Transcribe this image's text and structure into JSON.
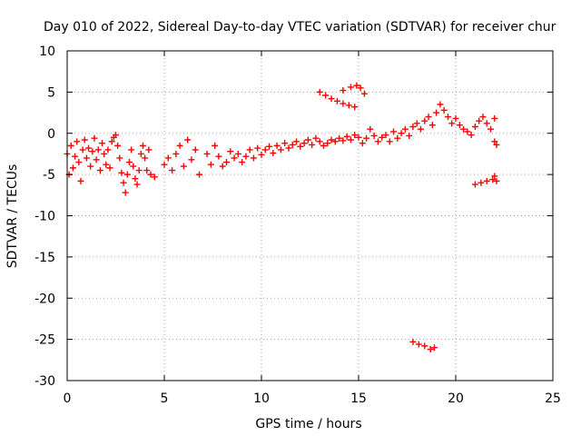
{
  "chart_data": {
    "type": "scatter",
    "title": "Day 010 of 2022, Sidereal Day-to-day VTEC variation (SDTVAR) for receiver chur",
    "xlabel": "GPS time / hours",
    "ylabel": "SDTVAR / TECUs",
    "xlim": [
      0,
      25
    ],
    "ylim": [
      -30,
      10
    ],
    "x_ticks": [
      0,
      5,
      10,
      15,
      20,
      25
    ],
    "x_tick_labels": [
      "0",
      "5",
      "10",
      "15",
      "20",
      "25"
    ],
    "y_ticks": [
      10,
      5,
      0,
      -5,
      -10,
      -15,
      -20,
      -25,
      -30
    ],
    "y_tick_labels": [
      "10",
      "5",
      "0",
      "-5",
      "-10",
      "-15",
      "-20",
      "-25",
      "-30"
    ],
    "grid": true,
    "marker": "+",
    "colors": {
      "series": "#ff0000",
      "grid": "#a0a0a0",
      "axis": "#000000"
    },
    "series": [
      {
        "name": "SDTVAR",
        "points": [
          [
            0.0,
            -2.5
          ],
          [
            0.1,
            -5.0
          ],
          [
            0.2,
            -1.5
          ],
          [
            0.3,
            -4.2
          ],
          [
            0.4,
            -2.8
          ],
          [
            0.5,
            -1.0
          ],
          [
            0.6,
            -3.5
          ],
          [
            0.7,
            -5.8
          ],
          [
            0.8,
            -2.0
          ],
          [
            0.9,
            -0.8
          ],
          [
            1.0,
            -3.0
          ],
          [
            1.1,
            -1.8
          ],
          [
            1.2,
            -4.0
          ],
          [
            1.3,
            -2.2
          ],
          [
            1.4,
            -0.6
          ],
          [
            1.5,
            -3.2
          ],
          [
            1.6,
            -2.0
          ],
          [
            1.7,
            -4.5
          ],
          [
            1.8,
            -1.2
          ],
          [
            1.9,
            -2.5
          ],
          [
            2.0,
            -3.8
          ],
          [
            2.1,
            -2.0
          ],
          [
            2.2,
            -4.2
          ],
          [
            2.3,
            -1.0
          ],
          [
            2.4,
            -0.5
          ],
          [
            2.5,
            -0.2
          ],
          [
            2.6,
            -1.5
          ],
          [
            2.7,
            -3.0
          ],
          [
            2.8,
            -4.8
          ],
          [
            2.9,
            -6.0
          ],
          [
            3.0,
            -7.2
          ],
          [
            3.1,
            -5.0
          ],
          [
            3.2,
            -3.5
          ],
          [
            3.3,
            -2.0
          ],
          [
            3.4,
            -4.0
          ],
          [
            3.5,
            -5.5
          ],
          [
            3.6,
            -6.2
          ],
          [
            3.7,
            -4.5
          ],
          [
            3.8,
            -2.5
          ],
          [
            3.9,
            -1.5
          ],
          [
            4.0,
            -3.0
          ],
          [
            4.1,
            -4.5
          ],
          [
            4.2,
            -2.0
          ],
          [
            4.3,
            -5.0
          ],
          [
            4.5,
            -5.3
          ],
          [
            5.0,
            -3.8
          ],
          [
            5.2,
            -3.0
          ],
          [
            5.4,
            -4.5
          ],
          [
            5.6,
            -2.5
          ],
          [
            5.8,
            -1.5
          ],
          [
            6.0,
            -4.0
          ],
          [
            6.2,
            -0.8
          ],
          [
            6.4,
            -3.2
          ],
          [
            6.6,
            -2.0
          ],
          [
            6.8,
            -5.0
          ],
          [
            7.2,
            -2.5
          ],
          [
            7.4,
            -3.8
          ],
          [
            7.6,
            -1.5
          ],
          [
            7.8,
            -2.8
          ],
          [
            8.0,
            -4.0
          ],
          [
            8.2,
            -3.5
          ],
          [
            8.4,
            -2.2
          ],
          [
            8.6,
            -3.0
          ],
          [
            8.8,
            -2.5
          ],
          [
            9.0,
            -3.5
          ],
          [
            9.2,
            -2.8
          ],
          [
            9.4,
            -2.0
          ],
          [
            9.6,
            -3.0
          ],
          [
            9.8,
            -1.8
          ],
          [
            10.0,
            -2.6
          ],
          [
            10.2,
            -2.0
          ],
          [
            10.4,
            -1.6
          ],
          [
            10.6,
            -2.4
          ],
          [
            10.8,
            -1.5
          ],
          [
            11.0,
            -2.0
          ],
          [
            11.2,
            -1.2
          ],
          [
            11.4,
            -1.8
          ],
          [
            11.6,
            -1.4
          ],
          [
            11.8,
            -1.0
          ],
          [
            12.0,
            -1.6
          ],
          [
            12.2,
            -1.2
          ],
          [
            12.4,
            -0.8
          ],
          [
            12.6,
            -1.4
          ],
          [
            12.8,
            -0.6
          ],
          [
            13.0,
            -1.0
          ],
          [
            13.2,
            -1.5
          ],
          [
            13.4,
            -1.2
          ],
          [
            13.6,
            -0.8
          ],
          [
            13.8,
            -1.0
          ],
          [
            14.0,
            -0.6
          ],
          [
            14.2,
            -0.9
          ],
          [
            14.4,
            -0.4
          ],
          [
            14.6,
            -0.8
          ],
          [
            14.8,
            -0.2
          ],
          [
            15.0,
            -0.5
          ],
          [
            15.2,
            -1.2
          ],
          [
            15.4,
            -0.6
          ],
          [
            15.6,
            0.5
          ],
          [
            15.8,
            -0.3
          ],
          [
            16.0,
            -1.0
          ],
          [
            16.2,
            -0.5
          ],
          [
            16.4,
            -0.2
          ],
          [
            16.6,
            -1.0
          ],
          [
            16.8,
            0.2
          ],
          [
            17.0,
            -0.6
          ],
          [
            17.2,
            0.0
          ],
          [
            17.4,
            0.5
          ],
          [
            17.6,
            -0.3
          ],
          [
            17.8,
            0.8
          ],
          [
            18.0,
            1.2
          ],
          [
            18.2,
            0.5
          ],
          [
            18.4,
            1.5
          ],
          [
            18.6,
            2.0
          ],
          [
            18.8,
            1.0
          ],
          [
            19.0,
            2.5
          ],
          [
            19.2,
            3.5
          ],
          [
            19.4,
            2.8
          ],
          [
            19.6,
            2.0
          ],
          [
            19.8,
            1.2
          ],
          [
            20.0,
            1.8
          ],
          [
            20.2,
            1.0
          ],
          [
            20.4,
            0.5
          ],
          [
            20.6,
            0.2
          ],
          [
            20.8,
            -0.2
          ],
          [
            21.0,
            0.8
          ],
          [
            21.2,
            1.5
          ],
          [
            21.4,
            2.0
          ],
          [
            21.6,
            1.2
          ],
          [
            21.8,
            0.5
          ],
          [
            22.0,
            -1.0
          ],
          [
            22.1,
            -1.4
          ],
          [
            22.0,
            1.8
          ],
          [
            13.0,
            5.0
          ],
          [
            13.3,
            4.6
          ],
          [
            13.6,
            4.2
          ],
          [
            13.9,
            3.9
          ],
          [
            14.2,
            3.6
          ],
          [
            14.5,
            3.4
          ],
          [
            14.8,
            3.2
          ],
          [
            14.2,
            5.2
          ],
          [
            14.6,
            5.6
          ],
          [
            14.9,
            5.8
          ],
          [
            15.1,
            5.5
          ],
          [
            15.3,
            4.8
          ],
          [
            21.0,
            -6.2
          ],
          [
            21.3,
            -6.0
          ],
          [
            21.6,
            -5.8
          ],
          [
            21.9,
            -5.6
          ],
          [
            22.0,
            -5.2
          ],
          [
            22.1,
            -5.8
          ],
          [
            17.8,
            -25.3
          ],
          [
            18.1,
            -25.6
          ],
          [
            18.4,
            -25.8
          ],
          [
            18.7,
            -26.2
          ],
          [
            18.9,
            -26.0
          ]
        ]
      }
    ]
  }
}
